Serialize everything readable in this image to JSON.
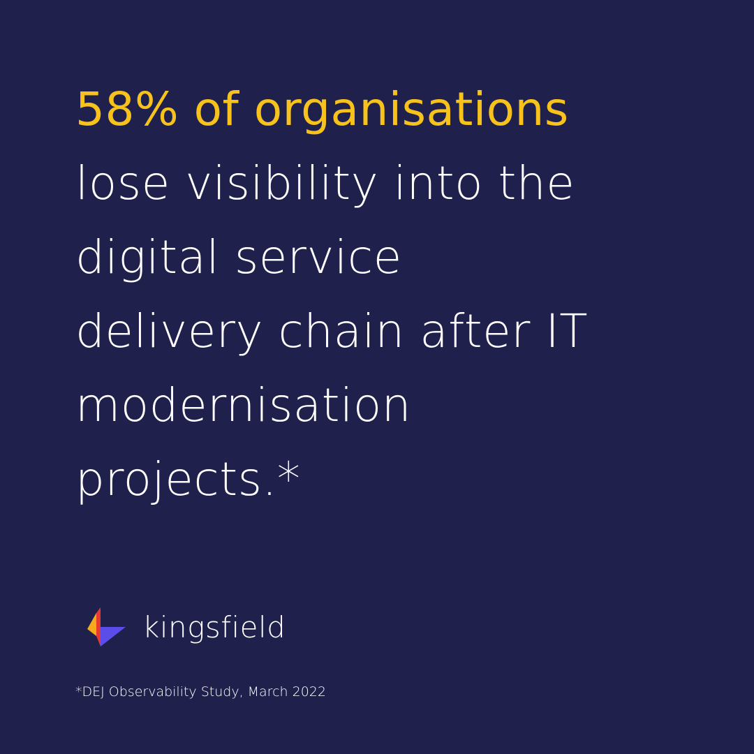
{
  "headline": {
    "highlight": "58% of organisations",
    "lines": [
      "lose visibility into the",
      "digital service",
      "delivery chain after IT",
      "modernisation",
      "projects.*"
    ]
  },
  "brand": {
    "name": "kingsfield",
    "logo_icon": "kingsfield-logo-icon",
    "logo_colors": [
      "#e63a2f",
      "#f7a81b",
      "#5a4dea"
    ]
  },
  "footnote": "*DEJ Observability Study, March 2022",
  "colors": {
    "background": "#20204c",
    "accent": "#f6c21b",
    "text": "#ffffff"
  }
}
